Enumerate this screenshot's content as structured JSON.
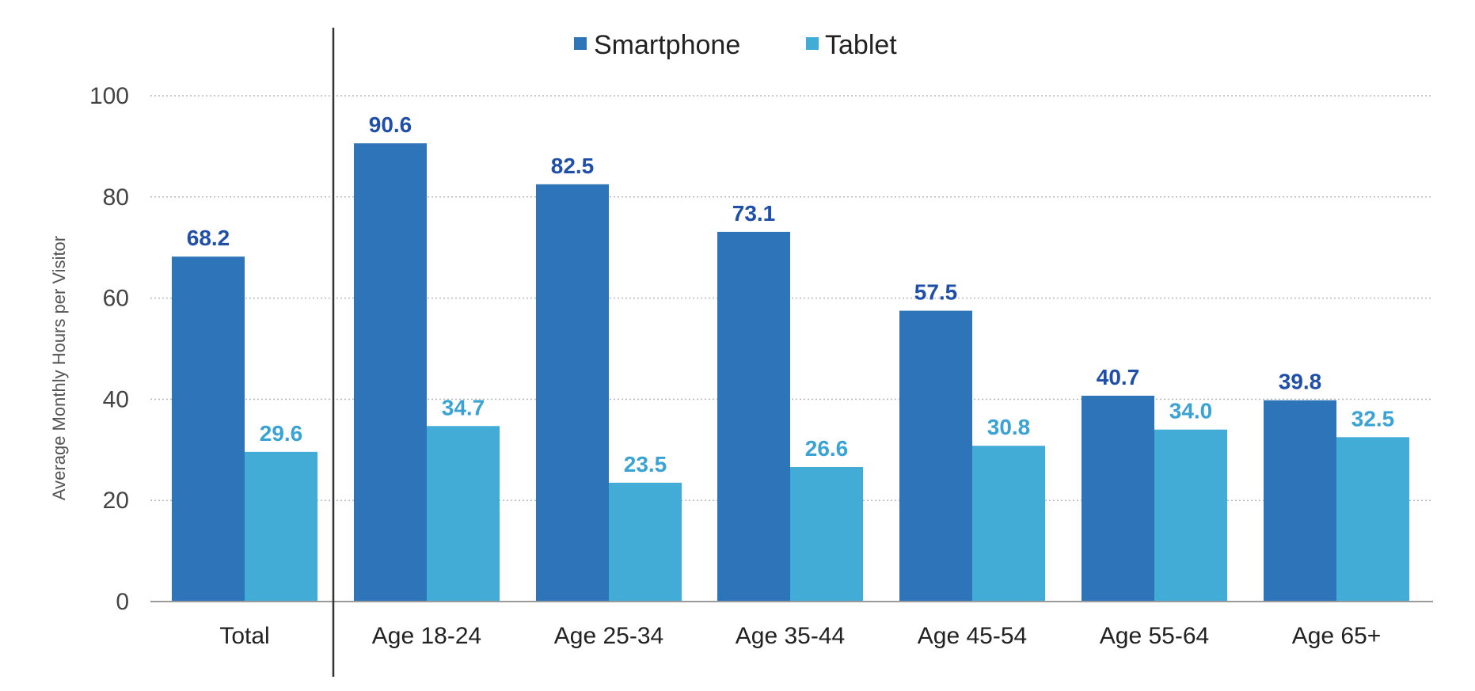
{
  "chart_data": {
    "type": "bar",
    "title": "",
    "xlabel": "",
    "ylabel": "Average Monthly Hours per Visitor",
    "ylim": [
      0,
      100
    ],
    "yticks": [
      "0",
      "20",
      "40",
      "60",
      "80",
      "100"
    ],
    "grid": true,
    "legend_position": "top-center",
    "categories": [
      "Total",
      "Age 18-24",
      "Age 25-34",
      "Age 35-44",
      "Age 45-54",
      "Age 55-64",
      "Age 65+"
    ],
    "series": [
      {
        "name": "Smartphone",
        "color": "#2e74b8",
        "label_color": "#1f4fa8",
        "values": [
          68.2,
          90.6,
          82.5,
          73.1,
          57.5,
          40.7,
          39.8
        ],
        "labels": [
          "68.2",
          "90.6",
          "82.5",
          "73.1",
          "57.5",
          "40.7",
          "39.8"
        ]
      },
      {
        "name": "Tablet",
        "color": "#42abd6",
        "label_color": "#3aa3d4",
        "values": [
          29.6,
          34.7,
          23.5,
          26.6,
          30.8,
          34.0,
          32.5
        ],
        "labels": [
          "29.6",
          "34.7",
          "23.5",
          "26.6",
          "30.8",
          "34.0",
          "32.5"
        ]
      }
    ]
  }
}
